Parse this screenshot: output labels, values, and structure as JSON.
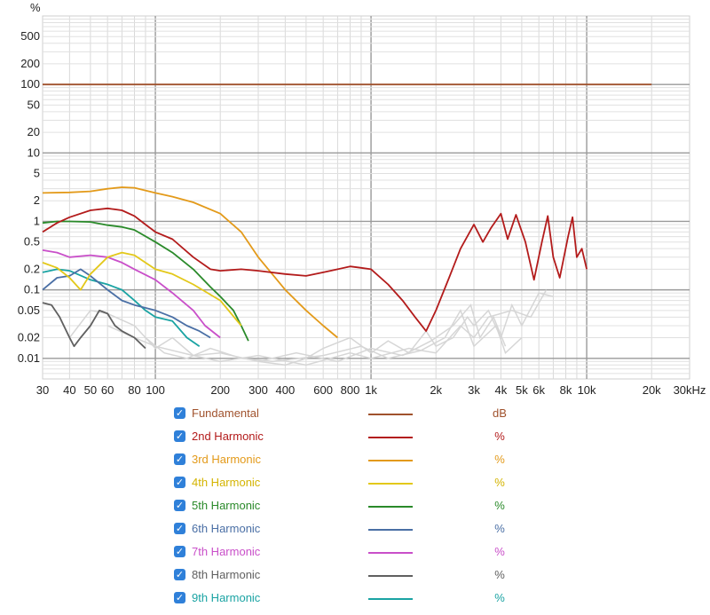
{
  "chart_data": {
    "type": "line",
    "y_unit_label": "%",
    "x_scale": "log",
    "y_scale": "log",
    "xlim": [
      30,
      30000
    ],
    "ylim": [
      0.005,
      1000
    ],
    "grid": true,
    "x_ticks": [
      {
        "v": 30,
        "label": "30"
      },
      {
        "v": 40,
        "label": "40"
      },
      {
        "v": 50,
        "label": "50"
      },
      {
        "v": 60,
        "label": "60"
      },
      {
        "v": 80,
        "label": "80"
      },
      {
        "v": 100,
        "label": "100"
      },
      {
        "v": 200,
        "label": "200"
      },
      {
        "v": 300,
        "label": "300"
      },
      {
        "v": 400,
        "label": "400"
      },
      {
        "v": 600,
        "label": "600"
      },
      {
        "v": 800,
        "label": "800"
      },
      {
        "v": 1000,
        "label": "1k"
      },
      {
        "v": 2000,
        "label": "2k"
      },
      {
        "v": 3000,
        "label": "3k"
      },
      {
        "v": 4000,
        "label": "4k"
      },
      {
        "v": 5000,
        "label": "5k"
      },
      {
        "v": 6000,
        "label": "6k"
      },
      {
        "v": 8000,
        "label": "8k"
      },
      {
        "v": 10000,
        "label": "10k"
      },
      {
        "v": 20000,
        "label": "20k"
      },
      {
        "v": 30000,
        "label": "30kHz"
      }
    ],
    "y_ticks": [
      {
        "v": 500,
        "label": "500"
      },
      {
        "v": 200,
        "label": "200"
      },
      {
        "v": 100,
        "label": "100"
      },
      {
        "v": 50,
        "label": "50"
      },
      {
        "v": 20,
        "label": "20"
      },
      {
        "v": 10,
        "label": "10"
      },
      {
        "v": 5,
        "label": "5"
      },
      {
        "v": 2,
        "label": "2"
      },
      {
        "v": 1,
        "label": "1"
      },
      {
        "v": 0.5,
        "label": "0.5"
      },
      {
        "v": 0.2,
        "label": "0.2"
      },
      {
        "v": 0.1,
        "label": "0.1"
      },
      {
        "v": 0.05,
        "label": "0.05"
      },
      {
        "v": 0.02,
        "label": "0.02"
      },
      {
        "v": 0.01,
        "label": "0.01"
      }
    ],
    "series": [
      {
        "name": "Fundamental",
        "unit": "dB",
        "color": "#a0522d",
        "points": [
          [
            30,
            100
          ],
          [
            20000,
            100
          ]
        ]
      },
      {
        "name": "2nd Harmonic",
        "unit": "%",
        "color": "#b31b1b",
        "points": [
          [
            30,
            0.7
          ],
          [
            35,
            0.95
          ],
          [
            40,
            1.15
          ],
          [
            50,
            1.45
          ],
          [
            60,
            1.55
          ],
          [
            70,
            1.45
          ],
          [
            80,
            1.2
          ],
          [
            90,
            0.9
          ],
          [
            100,
            0.7
          ],
          [
            120,
            0.55
          ],
          [
            150,
            0.3
          ],
          [
            180,
            0.2
          ],
          [
            200,
            0.19
          ],
          [
            250,
            0.2
          ],
          [
            300,
            0.19
          ],
          [
            400,
            0.17
          ],
          [
            500,
            0.16
          ],
          [
            600,
            0.18
          ],
          [
            700,
            0.2
          ],
          [
            800,
            0.22
          ],
          [
            900,
            0.21
          ],
          [
            1000,
            0.2
          ],
          [
            1200,
            0.12
          ],
          [
            1400,
            0.07
          ],
          [
            1600,
            0.04
          ],
          [
            1800,
            0.025
          ],
          [
            2000,
            0.05
          ],
          [
            2300,
            0.15
          ],
          [
            2600,
            0.4
          ],
          [
            3000,
            0.9
          ],
          [
            3300,
            0.5
          ],
          [
            3600,
            0.8
          ],
          [
            4000,
            1.3
          ],
          [
            4300,
            0.55
          ],
          [
            4700,
            1.25
          ],
          [
            5200,
            0.5
          ],
          [
            5700,
            0.14
          ],
          [
            6200,
            0.5
          ],
          [
            6600,
            1.2
          ],
          [
            7000,
            0.3
          ],
          [
            7500,
            0.15
          ],
          [
            8200,
            0.6
          ],
          [
            8600,
            1.15
          ],
          [
            9000,
            0.3
          ],
          [
            9500,
            0.4
          ],
          [
            10000,
            0.2
          ]
        ]
      },
      {
        "name": "3rd Harmonic",
        "unit": "%",
        "color": "#e39a1a",
        "points": [
          [
            30,
            2.6
          ],
          [
            40,
            2.65
          ],
          [
            50,
            2.75
          ],
          [
            60,
            3.0
          ],
          [
            70,
            3.15
          ],
          [
            80,
            3.1
          ],
          [
            100,
            2.6
          ],
          [
            120,
            2.3
          ],
          [
            150,
            1.9
          ],
          [
            200,
            1.3
          ],
          [
            250,
            0.7
          ],
          [
            300,
            0.3
          ],
          [
            400,
            0.1
          ],
          [
            500,
            0.05
          ],
          [
            600,
            0.03
          ],
          [
            700,
            0.02
          ]
        ]
      },
      {
        "name": "4th Harmonic",
        "unit": "%",
        "color": "#e3c81a",
        "points": [
          [
            30,
            0.25
          ],
          [
            35,
            0.21
          ],
          [
            40,
            0.15
          ],
          [
            45,
            0.1
          ],
          [
            50,
            0.17
          ],
          [
            60,
            0.3
          ],
          [
            70,
            0.35
          ],
          [
            80,
            0.32
          ],
          [
            100,
            0.2
          ],
          [
            120,
            0.17
          ],
          [
            150,
            0.12
          ],
          [
            200,
            0.07
          ],
          [
            250,
            0.03
          ]
        ]
      },
      {
        "name": "5th Harmonic",
        "unit": "%",
        "color": "#2a8a2a",
        "points": [
          [
            30,
            0.95
          ],
          [
            35,
            1.0
          ],
          [
            40,
            1.0
          ],
          [
            50,
            0.98
          ],
          [
            60,
            0.88
          ],
          [
            70,
            0.83
          ],
          [
            80,
            0.75
          ],
          [
            100,
            0.5
          ],
          [
            120,
            0.35
          ],
          [
            150,
            0.2
          ],
          [
            180,
            0.11
          ],
          [
            200,
            0.08
          ],
          [
            230,
            0.05
          ],
          [
            250,
            0.03
          ],
          [
            270,
            0.018
          ]
        ]
      },
      {
        "name": "6th Harmonic",
        "unit": "%",
        "color": "#4a6fa5",
        "points": [
          [
            30,
            0.1
          ],
          [
            35,
            0.15
          ],
          [
            40,
            0.16
          ],
          [
            45,
            0.2
          ],
          [
            50,
            0.16
          ],
          [
            60,
            0.1
          ],
          [
            70,
            0.07
          ],
          [
            80,
            0.06
          ],
          [
            100,
            0.05
          ],
          [
            120,
            0.04
          ],
          [
            140,
            0.03
          ],
          [
            160,
            0.025
          ],
          [
            180,
            0.02
          ]
        ]
      },
      {
        "name": "7th Harmonic",
        "unit": "%",
        "color": "#c94fc9",
        "points": [
          [
            30,
            0.38
          ],
          [
            35,
            0.35
          ],
          [
            40,
            0.3
          ],
          [
            50,
            0.32
          ],
          [
            60,
            0.3
          ],
          [
            70,
            0.25
          ],
          [
            80,
            0.2
          ],
          [
            100,
            0.14
          ],
          [
            120,
            0.09
          ],
          [
            150,
            0.05
          ],
          [
            170,
            0.03
          ],
          [
            200,
            0.02
          ]
        ]
      },
      {
        "name": "8th Harmonic",
        "unit": "%",
        "color": "#606060",
        "points": [
          [
            30,
            0.065
          ],
          [
            33,
            0.06
          ],
          [
            36,
            0.04
          ],
          [
            40,
            0.02
          ],
          [
            42,
            0.015
          ],
          [
            45,
            0.02
          ],
          [
            50,
            0.03
          ],
          [
            55,
            0.05
          ],
          [
            60,
            0.045
          ],
          [
            65,
            0.03
          ],
          [
            70,
            0.025
          ],
          [
            80,
            0.02
          ],
          [
            90,
            0.014
          ]
        ]
      },
      {
        "name": "9th Harmonic",
        "unit": "%",
        "color": "#1aa3a3",
        "points": [
          [
            30,
            0.18
          ],
          [
            35,
            0.2
          ],
          [
            40,
            0.19
          ],
          [
            50,
            0.14
          ],
          [
            60,
            0.12
          ],
          [
            70,
            0.1
          ],
          [
            80,
            0.07
          ],
          [
            90,
            0.05
          ],
          [
            100,
            0.04
          ],
          [
            120,
            0.035
          ],
          [
            140,
            0.02
          ],
          [
            160,
            0.015
          ]
        ]
      }
    ],
    "noise_traces": [
      {
        "color": "#d6d6d6",
        "points": [
          [
            40,
            0.02
          ],
          [
            50,
            0.05
          ],
          [
            60,
            0.045
          ],
          [
            80,
            0.03
          ],
          [
            100,
            0.014
          ],
          [
            120,
            0.02
          ],
          [
            150,
            0.011
          ],
          [
            200,
            0.012
          ],
          [
            300,
            0.009
          ],
          [
            400,
            0.008
          ],
          [
            500,
            0.01
          ],
          [
            600,
            0.014
          ],
          [
            800,
            0.02
          ],
          [
            1000,
            0.012
          ],
          [
            1200,
            0.018
          ],
          [
            1500,
            0.012
          ],
          [
            1800,
            0.025
          ],
          [
            2000,
            0.015
          ],
          [
            2400,
            0.02
          ],
          [
            2800,
            0.04
          ],
          [
            3000,
            0.03
          ],
          [
            3500,
            0.05
          ],
          [
            4000,
            0.02
          ],
          [
            4500,
            0.06
          ],
          [
            5000,
            0.03
          ],
          [
            6000,
            0.09
          ],
          [
            7000,
            0.08
          ]
        ]
      },
      {
        "color": "#d6d6d6",
        "points": [
          [
            60,
            0.03
          ],
          [
            80,
            0.02
          ],
          [
            100,
            0.015
          ],
          [
            150,
            0.011
          ],
          [
            200,
            0.009
          ],
          [
            300,
            0.011
          ],
          [
            500,
            0.008
          ],
          [
            800,
            0.012
          ],
          [
            1000,
            0.01
          ],
          [
            1500,
            0.014
          ],
          [
            2000,
            0.012
          ],
          [
            2600,
            0.03
          ],
          [
            3000,
            0.02
          ],
          [
            3500,
            0.04
          ],
          [
            4500,
            0.05
          ],
          [
            5500,
            0.04
          ],
          [
            6500,
            0.1
          ]
        ]
      },
      {
        "color": "#d6d6d6",
        "points": [
          [
            90,
            0.02
          ],
          [
            110,
            0.012
          ],
          [
            140,
            0.01
          ],
          [
            180,
            0.014
          ],
          [
            250,
            0.01
          ],
          [
            350,
            0.009
          ],
          [
            600,
            0.011
          ],
          [
            900,
            0.015
          ],
          [
            1200,
            0.01
          ],
          [
            1700,
            0.013
          ],
          [
            2200,
            0.02
          ],
          [
            2600,
            0.05
          ],
          [
            3000,
            0.015
          ],
          [
            3800,
            0.03
          ],
          [
            4200,
            0.012
          ],
          [
            5000,
            0.02
          ]
        ]
      },
      {
        "color": "#d6d6d6",
        "points": [
          [
            300,
            0.009
          ],
          [
            450,
            0.012
          ],
          [
            700,
            0.009
          ],
          [
            1000,
            0.014
          ],
          [
            1400,
            0.011
          ],
          [
            1900,
            0.018
          ],
          [
            2400,
            0.03
          ],
          [
            2900,
            0.06
          ],
          [
            3200,
            0.02
          ],
          [
            3700,
            0.04
          ],
          [
            4200,
            0.015
          ]
        ]
      }
    ]
  },
  "legend": [
    {
      "label": "Fundamental",
      "unit": "dB",
      "color": "#a0522d",
      "label_color": "#a0522d",
      "checked": "✓"
    },
    {
      "label": "2nd Harmonic",
      "unit": "%",
      "color": "#b31b1b",
      "label_color": "#b31b1b",
      "checked": "✓"
    },
    {
      "label": "3rd Harmonic",
      "unit": "%",
      "color": "#e39a1a",
      "label_color": "#e39a1a",
      "checked": "✓"
    },
    {
      "label": "4th Harmonic",
      "unit": "%",
      "color": "#e3c81a",
      "label_color": "#d4b400",
      "checked": "✓"
    },
    {
      "label": "5th Harmonic",
      "unit": "%",
      "color": "#2a8a2a",
      "label_color": "#2a8a2a",
      "checked": "✓"
    },
    {
      "label": "6th Harmonic",
      "unit": "%",
      "color": "#4a6fa5",
      "label_color": "#4a6fa5",
      "checked": "✓"
    },
    {
      "label": "7th Harmonic",
      "unit": "%",
      "color": "#c94fc9",
      "label_color": "#c94fc9",
      "checked": "✓"
    },
    {
      "label": "8th Harmonic",
      "unit": "%",
      "color": "#606060",
      "label_color": "#606060",
      "checked": "✓"
    },
    {
      "label": "9th Harmonic",
      "unit": "%",
      "color": "#1aa3a3",
      "label_color": "#1aa3a3",
      "checked": "✓"
    }
  ]
}
